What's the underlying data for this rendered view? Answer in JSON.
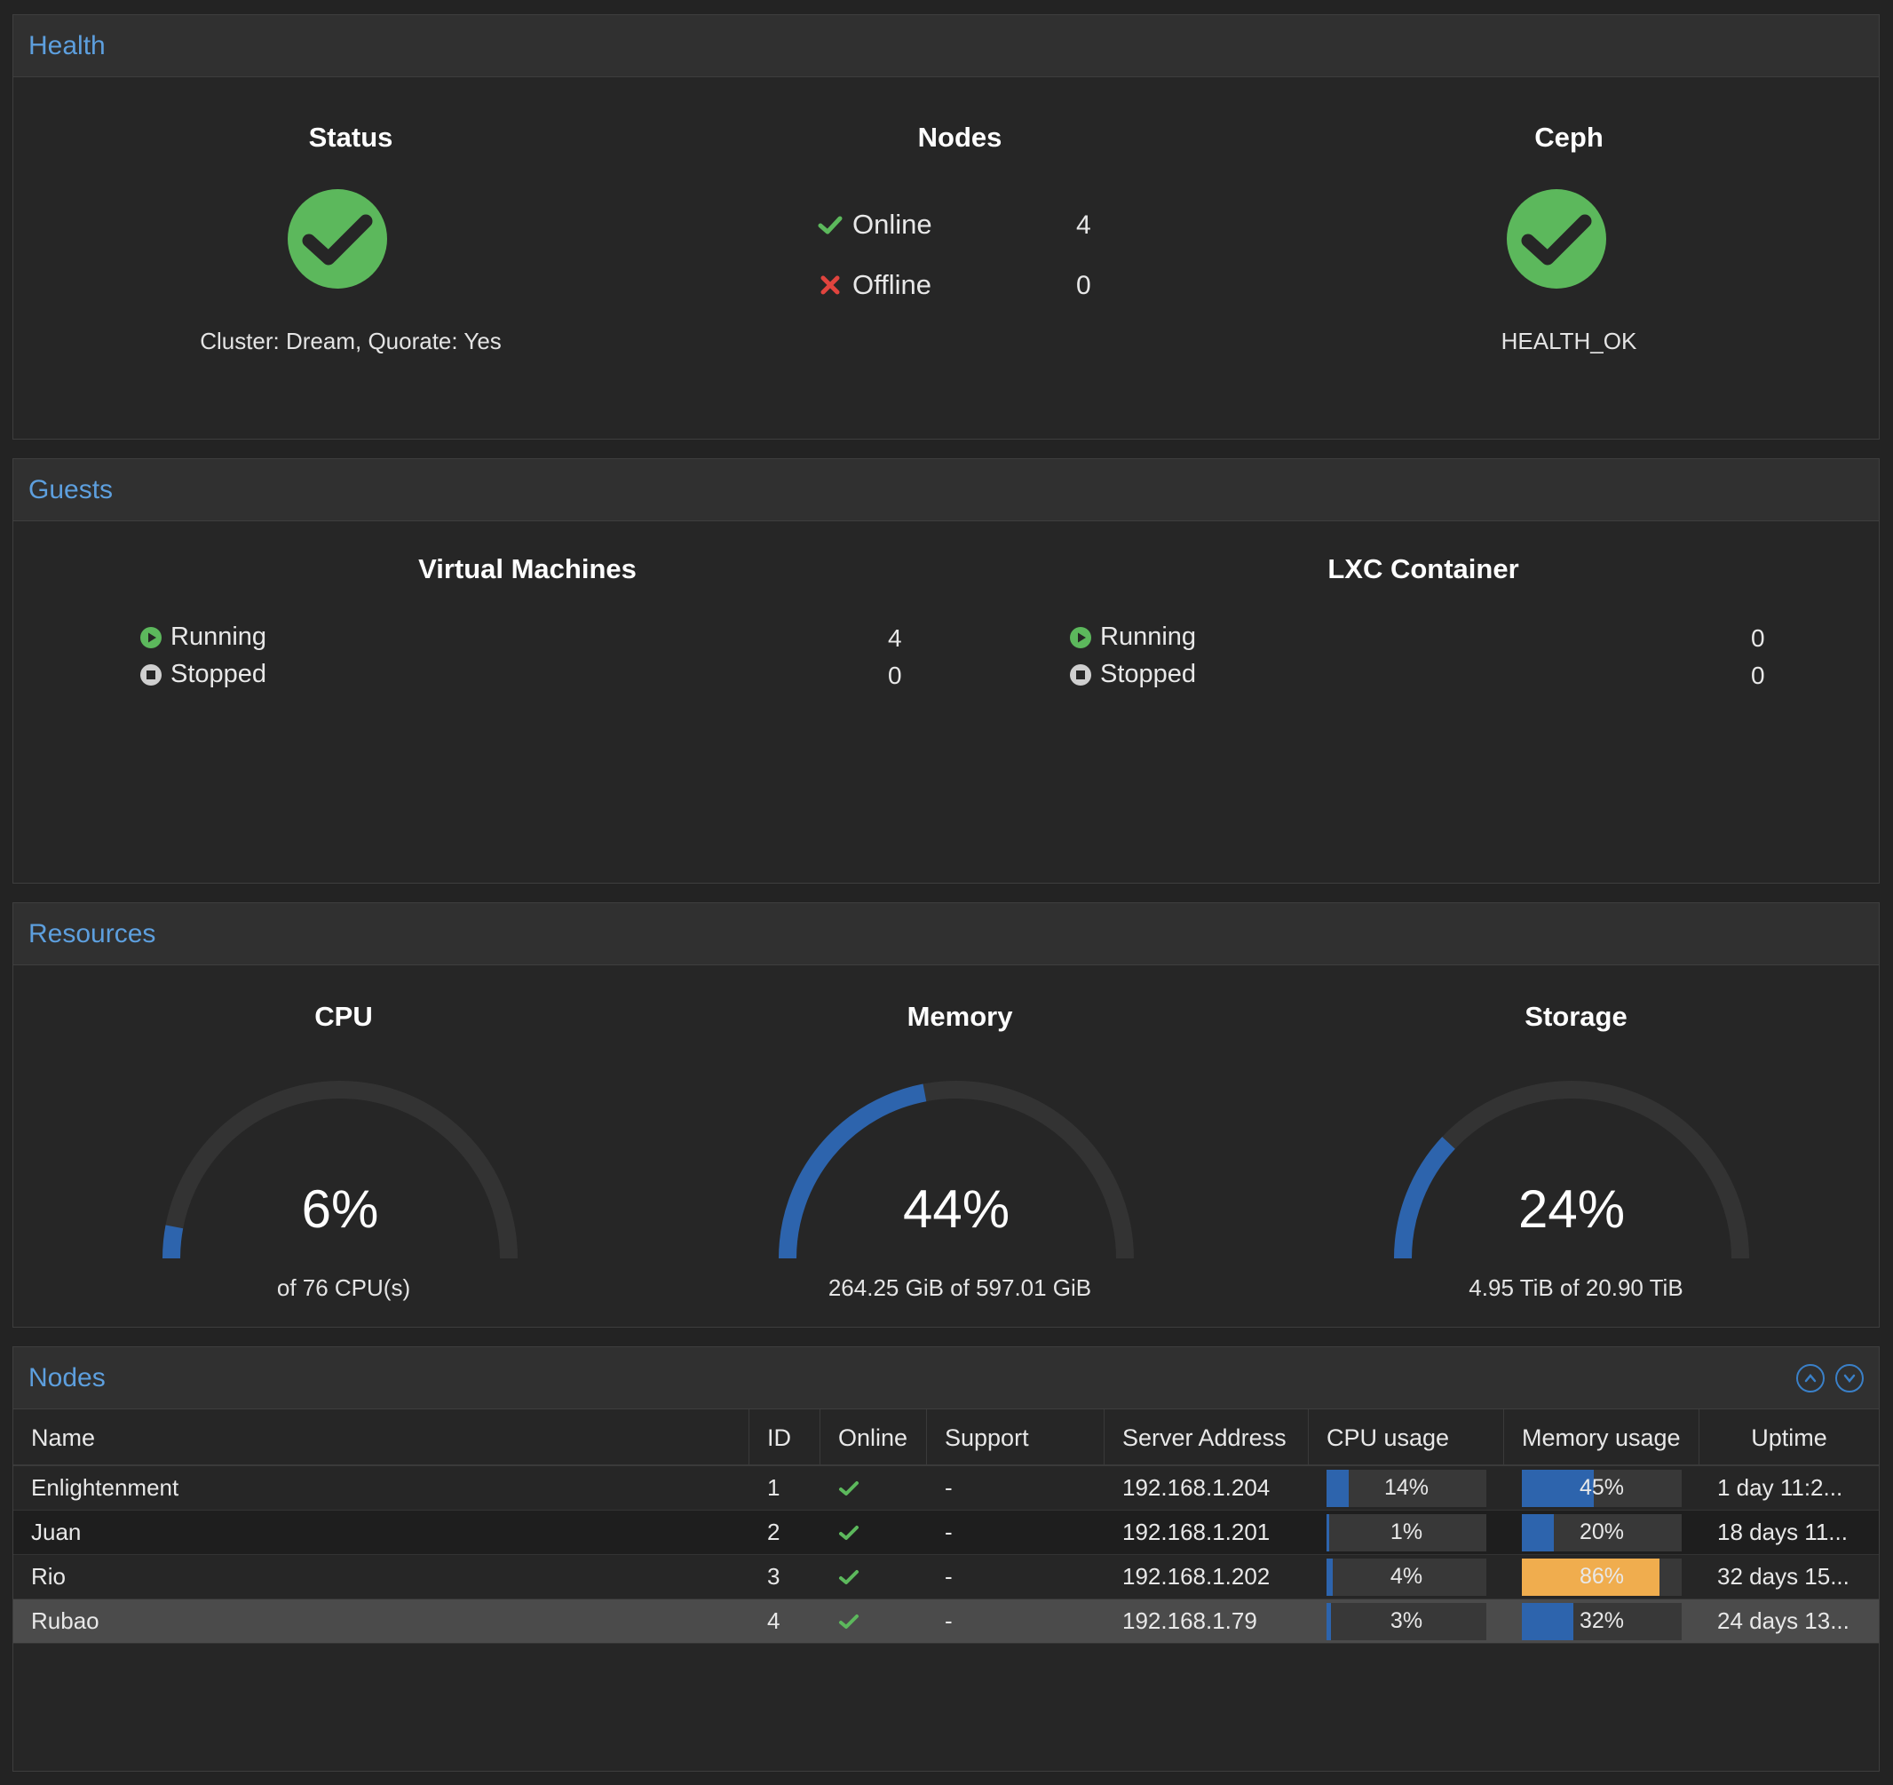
{
  "health": {
    "title": "Health",
    "status": {
      "title": "Status",
      "caption": "Cluster: Dream, Quorate: Yes"
    },
    "nodes": {
      "title": "Nodes",
      "online_label": "Online",
      "online_value": "4",
      "offline_label": "Offline",
      "offline_value": "0"
    },
    "ceph": {
      "title": "Ceph",
      "caption": "HEALTH_OK"
    },
    "colors": {
      "ok": "#5cb85c",
      "error": "#e0443e"
    }
  },
  "guests": {
    "title": "Guests",
    "vm": {
      "title": "Virtual Machines",
      "running_label": "Running",
      "running_value": "4",
      "stopped_label": "Stopped",
      "stopped_value": "0"
    },
    "lxc": {
      "title": "LXC Container",
      "running_label": "Running",
      "running_value": "0",
      "stopped_label": "Stopped",
      "stopped_value": "0"
    }
  },
  "resources": {
    "title": "Resources",
    "cpu": {
      "title": "CPU",
      "value": "6%",
      "fraction": 0.06,
      "caption": "of 76 CPU(s)"
    },
    "memory": {
      "title": "Memory",
      "value": "44%",
      "fraction": 0.44,
      "caption": "264.25 GiB of 597.01 GiB"
    },
    "storage": {
      "title": "Storage",
      "value": "24%",
      "fraction": 0.24,
      "caption": "4.95 TiB of 20.90 TiB"
    },
    "colors": {
      "gauge_fill": "#2d64ad",
      "gauge_track": "#333333"
    }
  },
  "nodes_table": {
    "title": "Nodes",
    "columns": [
      "Name",
      "ID",
      "Online",
      "Support",
      "Server Address",
      "CPU usage",
      "Memory usage",
      "Uptime"
    ],
    "rows": [
      {
        "name": "Enlightenment",
        "id": "1",
        "support": "-",
        "address": "192.168.1.204",
        "cpu": "14%",
        "cpu_frac": 0.14,
        "mem": "45%",
        "mem_frac": 0.45,
        "uptime": "1 day 11:2..."
      },
      {
        "name": "Juan",
        "id": "2",
        "support": "-",
        "address": "192.168.1.201",
        "cpu": "1%",
        "cpu_frac": 0.01,
        "mem": "20%",
        "mem_frac": 0.2,
        "uptime": "18 days 11..."
      },
      {
        "name": "Rio",
        "id": "3",
        "support": "-",
        "address": "192.168.1.202",
        "cpu": "4%",
        "cpu_frac": 0.04,
        "mem": "86%",
        "mem_frac": 0.86,
        "uptime": "32 days 15..."
      },
      {
        "name": "Rubao",
        "id": "4",
        "support": "-",
        "address": "192.168.1.79",
        "cpu": "3%",
        "cpu_frac": 0.03,
        "mem": "32%",
        "mem_frac": 0.32,
        "uptime": "24 days 13..."
      }
    ],
    "colors": {
      "bar_normal": "#2d64ad",
      "bar_warning": "#f0ad4e"
    }
  }
}
